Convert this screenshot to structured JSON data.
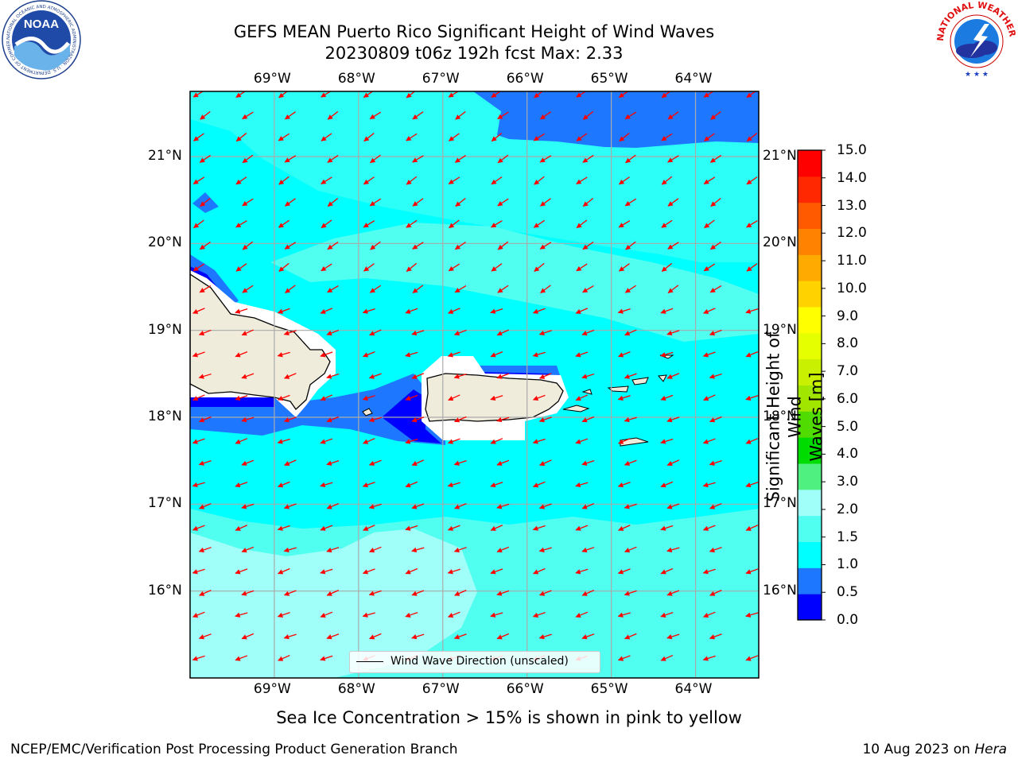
{
  "title": {
    "line1": "GEFS MEAN Puerto Rico Significant Height of Wind Waves",
    "line2": "20230809 t06z 192h fcst   Max: 2.33"
  },
  "logos": {
    "left": {
      "name": "noaa-logo",
      "text": "NOAA",
      "ring_text": "NATIONAL OCEANIC AND ATMOSPHERIC ADMINISTRATION · U.S. DEPARTMENT OF COMMERCE"
    },
    "right": {
      "name": "national-weather-service-logo",
      "ring_text": "NATIONAL WEATHER SERVICE"
    }
  },
  "map": {
    "lon_ticks": [
      "69°W",
      "68°W",
      "67°W",
      "66°W",
      "65°W",
      "64°W"
    ],
    "lat_ticks_left": [
      "21°N",
      "20°N",
      "19°N",
      "18°N",
      "17°N",
      "16°N"
    ],
    "lat_ticks_right": [
      "21°N",
      "20°N",
      "19°N",
      "18°N",
      "17°N",
      "16°N"
    ],
    "lon_values": [
      -69,
      -68,
      -67,
      -66,
      -65,
      -64
    ],
    "lat_values": [
      21,
      20,
      19,
      18,
      17,
      16
    ],
    "lon_range": [
      -70.0,
      -63.25
    ],
    "lat_range": [
      15.0,
      21.75
    ],
    "grid": true,
    "arrow_color": "#ff0000",
    "land_color": "#efecdc",
    "legend_text": "Wind Wave Direction (unscaled)",
    "legend_location": "bottom-center"
  },
  "colorbar": {
    "label": "Significant Height of Wind Waves [m]",
    "label_line1": "Significant Height of Wind",
    "label_line2": "Waves [m]",
    "ticks": [
      "15.0",
      "14.0",
      "13.0",
      "12.0",
      "11.0",
      "10.0",
      "9.0",
      "8.0",
      "7.0",
      "6.0",
      "5.0",
      "4.0",
      "3.0",
      "2.0",
      "1.5",
      "1.0",
      "0.5",
      "0.0"
    ],
    "colors_bottom_to_top": [
      "#0000ff",
      "#1e78ff",
      "#00ffff",
      "#50fff0",
      "#a0fff8",
      "#50f080",
      "#00dc00",
      "#50dc00",
      "#a0e600",
      "#c8f000",
      "#e6ff00",
      "#ffff00",
      "#ffd200",
      "#ffaa00",
      "#ff8200",
      "#ff5a00",
      "#ff2800",
      "#ff0000"
    ]
  },
  "footnote": "Sea Ice Concentration > 15% is shown in pink to yellow",
  "credit_left": "NCEP/EMC/Verification Post Processing Product Generation Branch",
  "credit_right_prefix": "10 Aug 2023 on ",
  "credit_right_host": "Hera"
}
